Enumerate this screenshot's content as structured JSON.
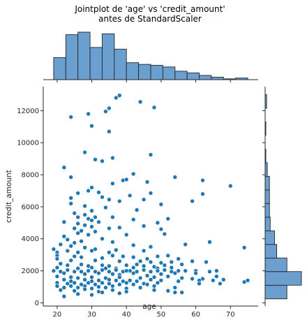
{
  "chart_data": {
    "type": "scatter",
    "title_lines": [
      "Jointplot de 'age' vs 'credit_amount'",
      "antes de StandardScaler"
    ],
    "xlabel": "age",
    "ylabel": "credit_amount",
    "xlim": [
      16,
      78
    ],
    "ylim": [
      -200,
      13500
    ],
    "x_ticks": [
      20,
      30,
      40,
      50,
      60,
      70
    ],
    "y_ticks": [
      0,
      2000,
      4000,
      6000,
      8000,
      10000,
      12000
    ],
    "grid": false,
    "colors": {
      "point_fill": "#1f77b4",
      "point_edge": "#ffffff",
      "bar_fill": "#6a9fcf",
      "bar_edge": "#262626",
      "axis": "#262626"
    },
    "points": [
      [
        38,
        12950
      ],
      [
        37,
        12800
      ],
      [
        44,
        12550
      ],
      [
        35,
        12150
      ],
      [
        48,
        12200
      ],
      [
        34,
        11950
      ],
      [
        29,
        11800
      ],
      [
        24,
        11600
      ],
      [
        30,
        11050
      ],
      [
        35,
        10700
      ],
      [
        28,
        9400
      ],
      [
        47,
        9250
      ],
      [
        33,
        8850
      ],
      [
        31,
        8950
      ],
      [
        36,
        9050
      ],
      [
        22,
        8450
      ],
      [
        42,
        8050
      ],
      [
        24,
        7850
      ],
      [
        54,
        7850
      ],
      [
        62,
        7650
      ],
      [
        39,
        7650
      ],
      [
        40,
        7700
      ],
      [
        36,
        7450
      ],
      [
        46,
        7550
      ],
      [
        70,
        7300
      ],
      [
        30,
        7200
      ],
      [
        29,
        7000
      ],
      [
        32,
        6900
      ],
      [
        26,
        6850
      ],
      [
        41,
        6700
      ],
      [
        47,
        6850
      ],
      [
        33,
        6600
      ],
      [
        62,
        6800
      ],
      [
        24,
        6550
      ],
      [
        35,
        6450
      ],
      [
        38,
        6350
      ],
      [
        50,
        6150
      ],
      [
        59,
        6350
      ],
      [
        45,
        6450
      ],
      [
        24,
        6200
      ],
      [
        28,
        6050
      ],
      [
        34,
        5950
      ],
      [
        43,
        5800
      ],
      [
        30,
        5750
      ],
      [
        25,
        5600
      ],
      [
        28,
        5500
      ],
      [
        26,
        5350
      ],
      [
        29,
        5250
      ],
      [
        31,
        5350
      ],
      [
        30,
        5150
      ],
      [
        32,
        5050
      ],
      [
        22,
        5050
      ],
      [
        42,
        5200
      ],
      [
        52,
        5250
      ],
      [
        36,
        5350
      ],
      [
        49,
        5000
      ],
      [
        26,
        4950
      ],
      [
        28,
        4850
      ],
      [
        30,
        4750
      ],
      [
        25,
        4650
      ],
      [
        35,
        4650
      ],
      [
        45,
        4800
      ],
      [
        38,
        4700
      ],
      [
        27,
        4500
      ],
      [
        31,
        4450
      ],
      [
        26,
        4350
      ],
      [
        29,
        4250
      ],
      [
        22,
        4150
      ],
      [
        40,
        4250
      ],
      [
        50,
        4600
      ],
      [
        51,
        4300
      ],
      [
        23,
        3950
      ],
      [
        27,
        3850
      ],
      [
        33,
        4000
      ],
      [
        36,
        3800
      ],
      [
        25,
        3750
      ],
      [
        21,
        3650
      ],
      [
        42,
        3600
      ],
      [
        24,
        3550
      ],
      [
        28,
        3450
      ],
      [
        31,
        3350
      ],
      [
        37,
        3300
      ],
      [
        47,
        3500
      ],
      [
        57,
        3650
      ],
      [
        64,
        3800
      ],
      [
        74,
        3450
      ],
      [
        19,
        3350
      ],
      [
        23,
        3250
      ],
      [
        26,
        3150
      ],
      [
        30,
        3250
      ],
      [
        35,
        3150
      ],
      [
        45,
        3250
      ],
      [
        20,
        3150
      ],
      [
        20,
        2950
      ],
      [
        25,
        2900
      ],
      [
        27,
        2850
      ],
      [
        33,
        2800
      ],
      [
        36,
        2950
      ],
      [
        39,
        2900
      ],
      [
        42,
        2850
      ],
      [
        46,
        2750
      ],
      [
        49,
        2900
      ],
      [
        52,
        2950
      ],
      [
        55,
        2750
      ],
      [
        20,
        2750
      ],
      [
        24,
        2650
      ],
      [
        31,
        2650
      ],
      [
        38,
        2600
      ],
      [
        44,
        2600
      ],
      [
        47,
        2550
      ],
      [
        50,
        2500
      ],
      [
        53,
        2550
      ],
      [
        59,
        2600
      ],
      [
        63,
        2550
      ],
      [
        21,
        2450
      ],
      [
        23,
        2350
      ],
      [
        27,
        2400
      ],
      [
        29,
        2300
      ],
      [
        33,
        2350
      ],
      [
        35,
        2300
      ],
      [
        40,
        2350
      ],
      [
        43,
        2400
      ],
      [
        45,
        2300
      ],
      [
        48,
        2250
      ],
      [
        51,
        2350
      ],
      [
        56,
        2400
      ],
      [
        20,
        2200
      ],
      [
        26,
        2150
      ],
      [
        30,
        2200
      ],
      [
        34,
        2150
      ],
      [
        37,
        2150
      ],
      [
        42,
        2200
      ],
      [
        49,
        2150
      ],
      [
        53,
        2200
      ],
      [
        19,
        2000
      ],
      [
        21,
        1950
      ],
      [
        23,
        2050
      ],
      [
        25,
        1950
      ],
      [
        27,
        1950
      ],
      [
        29,
        2000
      ],
      [
        31,
        1950
      ],
      [
        33,
        2050
      ],
      [
        35,
        1950
      ],
      [
        37,
        2050
      ],
      [
        39,
        1950
      ],
      [
        41,
        2000
      ],
      [
        43,
        1950
      ],
      [
        45,
        2050
      ],
      [
        47,
        1950
      ],
      [
        49,
        2000
      ],
      [
        51,
        2050
      ],
      [
        53,
        1950
      ],
      [
        55,
        2000
      ],
      [
        57,
        2000
      ],
      [
        60,
        2000
      ],
      [
        64,
        1950
      ],
      [
        66,
        2000
      ],
      [
        40,
        2000
      ],
      [
        22,
        1850
      ],
      [
        28,
        1800
      ],
      [
        32,
        1850
      ],
      [
        36,
        1800
      ],
      [
        38,
        1750
      ],
      [
        42,
        1850
      ],
      [
        46,
        1700
      ],
      [
        50,
        1800
      ],
      [
        54,
        1850
      ],
      [
        60,
        1850
      ],
      [
        20,
        1650
      ],
      [
        24,
        1600
      ],
      [
        26,
        1550
      ],
      [
        30,
        1600
      ],
      [
        34,
        1550
      ],
      [
        38,
        1600
      ],
      [
        44,
        1550
      ],
      [
        48,
        1600
      ],
      [
        52,
        1650
      ],
      [
        56,
        1550
      ],
      [
        59,
        1500
      ],
      [
        62,
        1500
      ],
      [
        66,
        1650
      ],
      [
        22,
        1450
      ],
      [
        24,
        1350
      ],
      [
        28,
        1450
      ],
      [
        30,
        1350
      ],
      [
        32,
        1400
      ],
      [
        35,
        1450
      ],
      [
        37,
        1400
      ],
      [
        39,
        1350
      ],
      [
        41,
        1400
      ],
      [
        43,
        1350
      ],
      [
        47,
        1450
      ],
      [
        50,
        1400
      ],
      [
        55,
        1350
      ],
      [
        61,
        1400
      ],
      [
        65,
        1400
      ],
      [
        68,
        1450
      ],
      [
        74,
        1300
      ],
      [
        75,
        1400
      ],
      [
        67,
        1200
      ],
      [
        61,
        1200
      ],
      [
        20,
        1250
      ],
      [
        23,
        1200
      ],
      [
        25,
        1250
      ],
      [
        27,
        1150
      ],
      [
        29,
        1250
      ],
      [
        31,
        1150
      ],
      [
        33,
        1250
      ],
      [
        35,
        1200
      ],
      [
        38,
        1150
      ],
      [
        40,
        1250
      ],
      [
        42,
        1150
      ],
      [
        45,
        1200
      ],
      [
        46,
        1150
      ],
      [
        49,
        1250
      ],
      [
        20,
        1050
      ],
      [
        22,
        950
      ],
      [
        24,
        1050
      ],
      [
        26,
        950
      ],
      [
        28,
        1050
      ],
      [
        30,
        900
      ],
      [
        32,
        1000
      ],
      [
        34,
        950
      ],
      [
        36,
        1050
      ],
      [
        40,
        900
      ],
      [
        44,
        950
      ],
      [
        48,
        1050
      ],
      [
        54,
        950
      ],
      [
        21,
        800
      ],
      [
        25,
        750
      ],
      [
        28,
        850
      ],
      [
        32,
        700
      ],
      [
        36,
        800
      ],
      [
        40,
        700
      ],
      [
        48,
        800
      ],
      [
        52,
        750
      ],
      [
        54,
        650
      ],
      [
        56,
        650
      ],
      [
        33,
        650
      ],
      [
        22,
        400
      ],
      [
        26,
        550
      ],
      [
        30,
        500
      ],
      [
        38,
        600
      ]
    ],
    "age_histogram": {
      "bin_edges": [
        19,
        22.5,
        26,
        29.5,
        33,
        36.5,
        40,
        43.5,
        47,
        50.5,
        54,
        57.5,
        61,
        64.5,
        68,
        71.5,
        75
      ],
      "counts": [
        26,
        53,
        56,
        38,
        54,
        36,
        20,
        18,
        17,
        15,
        10,
        8,
        5,
        3,
        1,
        2
      ]
    },
    "credit_histogram": {
      "bin_edges": [
        250,
        1100,
        1950,
        2800,
        3650,
        4500,
        5350,
        6200,
        7050,
        7900,
        8750,
        9600,
        10450,
        11300,
        12150,
        13000
      ],
      "counts": [
        30,
        50,
        30,
        16,
        13,
        7,
        6,
        6,
        6,
        3,
        1,
        0,
        1,
        0,
        2
      ]
    }
  }
}
